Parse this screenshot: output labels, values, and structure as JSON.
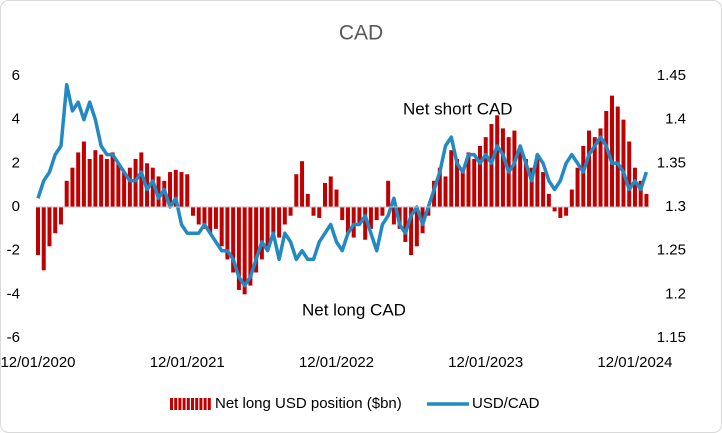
{
  "chart_data": {
    "type": "bar-line",
    "title": "CAD",
    "annotations": [
      "Net short CAD",
      "Net long CAD"
    ],
    "categories": [
      "12/01/2020",
      null,
      null,
      null,
      null,
      null,
      null,
      null,
      null,
      null,
      null,
      null,
      null,
      null,
      null,
      null,
      null,
      null,
      null,
      null,
      null,
      null,
      null,
      null,
      null,
      null,
      "12/01/2021",
      null,
      null,
      null,
      null,
      null,
      null,
      null,
      null,
      null,
      null,
      null,
      null,
      null,
      null,
      null,
      null,
      null,
      null,
      null,
      null,
      null,
      null,
      null,
      null,
      null,
      "12/01/2022",
      null,
      null,
      null,
      null,
      null,
      null,
      null,
      null,
      null,
      null,
      null,
      null,
      null,
      null,
      null,
      null,
      null,
      null,
      null,
      null,
      null,
      null,
      null,
      null,
      null,
      "12/01/2023",
      null,
      null,
      null,
      null,
      null,
      null,
      null,
      null,
      null,
      null,
      null,
      null,
      null,
      null,
      null,
      null,
      null,
      null,
      null,
      null,
      null,
      null,
      null,
      null,
      null,
      "12/01/2024",
      null,
      null
    ],
    "series": [
      {
        "name": "Net long USD position ($bn)",
        "color": "#c00000",
        "axis": "y",
        "kind": "bar",
        "values": [
          -2.2,
          -2.9,
          -1.8,
          -1.2,
          -0.8,
          1.2,
          1.8,
          2.5,
          3,
          2.2,
          2.6,
          2.4,
          2.2,
          2.5,
          2,
          1.6,
          1.8,
          2.2,
          2.5,
          2,
          1.8,
          1.4,
          1.2,
          1.6,
          1.7,
          1.6,
          1.5,
          -0.4,
          -0.8,
          -1,
          -1.2,
          -1,
          -1.8,
          -2.4,
          -3,
          -3.8,
          -4,
          -3.6,
          -3,
          -2.4,
          -1.8,
          -1.2,
          -1.4,
          -0.8,
          -0.4,
          1.5,
          2.1,
          0.6,
          -0.4,
          -0.5,
          1.1,
          1.4,
          0.8,
          -0.6,
          -1.2,
          -1.4,
          -0.8,
          -1.5,
          -1,
          -0.6,
          -0.4,
          1.2,
          -0.8,
          -1,
          -1.6,
          -2.2,
          -1.8,
          -1.2,
          -0.4,
          1.2,
          1.8,
          1.4,
          2.6,
          2.2,
          1.8,
          2.5,
          2.2,
          2.8,
          3.2,
          3.8,
          4.2,
          3.6,
          3.2,
          3.5,
          2.6,
          2.2,
          1.8,
          2.4,
          1.6,
          0.6,
          -0.2,
          -0.5,
          -0.4,
          0.8,
          1.8,
          2.8,
          3.5,
          3.2,
          3.6,
          4.4,
          5.1,
          4.6,
          4,
          3,
          1.8,
          1.2,
          0.6
        ]
      },
      {
        "name": "USD/CAD",
        "color": "#2389c2",
        "axis": "y2",
        "kind": "line",
        "values": [
          1.31,
          1.33,
          1.34,
          1.36,
          1.37,
          1.44,
          1.41,
          1.42,
          1.4,
          1.42,
          1.4,
          1.37,
          1.36,
          1.36,
          1.35,
          1.34,
          1.33,
          1.33,
          1.34,
          1.32,
          1.33,
          1.31,
          1.32,
          1.3,
          1.31,
          1.28,
          1.27,
          1.27,
          1.27,
          1.28,
          1.27,
          1.26,
          1.25,
          1.25,
          1.24,
          1.22,
          1.21,
          1.22,
          1.24,
          1.26,
          1.25,
          1.27,
          1.24,
          1.27,
          1.26,
          1.24,
          1.25,
          1.24,
          1.24,
          1.26,
          1.27,
          1.28,
          1.26,
          1.25,
          1.27,
          1.28,
          1.28,
          1.29,
          1.27,
          1.25,
          1.28,
          1.29,
          1.31,
          1.28,
          1.27,
          1.29,
          1.3,
          1.28,
          1.3,
          1.32,
          1.34,
          1.37,
          1.38,
          1.35,
          1.34,
          1.36,
          1.36,
          1.35,
          1.36,
          1.35,
          1.37,
          1.36,
          1.34,
          1.35,
          1.37,
          1.35,
          1.33,
          1.36,
          1.35,
          1.33,
          1.32,
          1.33,
          1.35,
          1.36,
          1.35,
          1.34,
          1.36,
          1.37,
          1.38,
          1.37,
          1.35,
          1.35,
          1.34,
          1.32,
          1.33,
          1.32,
          1.34
        ]
      }
    ],
    "ylim": [
      -6,
      6
    ],
    "yticks": [
      -6,
      -4,
      -2,
      0,
      2,
      4,
      6
    ],
    "y2lim": [
      1.15,
      1.45
    ],
    "y2ticks": [
      1.15,
      1.2,
      1.25,
      1.3,
      1.35,
      1.4,
      1.45
    ]
  }
}
